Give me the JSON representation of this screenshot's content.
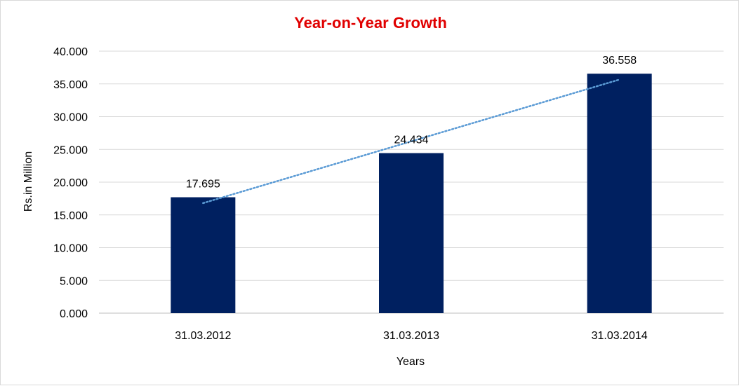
{
  "colors": {
    "title": "#e00000",
    "bar": "#002060",
    "trendline": "#5b9bd5",
    "grid": "#d9d9d9"
  },
  "chart_data": {
    "type": "bar",
    "title": "Year-on-Year Growth",
    "xlabel": "Years",
    "ylabel": "Rs.in Million",
    "categories": [
      "31.03.2012",
      "31.03.2013",
      "31.03.2014"
    ],
    "values": [
      17.695,
      24.434,
      36.558
    ],
    "data_labels": [
      "17.695",
      "24.434",
      "36.558"
    ],
    "ylim": [
      0,
      40
    ],
    "y_ticks": [
      0,
      5,
      10,
      15,
      20,
      25,
      30,
      35,
      40
    ],
    "y_tick_labels": [
      "0.000",
      "5.000",
      "10.000",
      "15.000",
      "20.000",
      "25.000",
      "30.000",
      "35.000",
      "40.000"
    ],
    "trendline": "linear, dotted",
    "grid": true,
    "legend": "none"
  }
}
